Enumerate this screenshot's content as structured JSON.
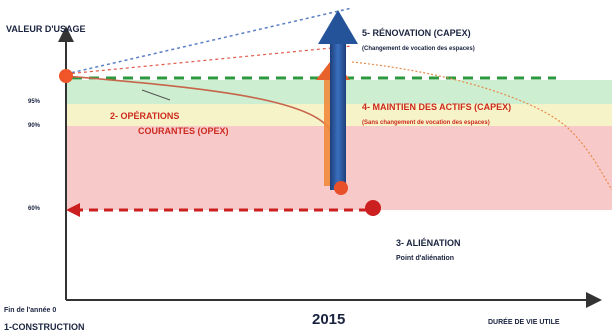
{
  "axes": {
    "y_title": "VALEUR D'USAGE",
    "x_title": "DURÉE DE VIE UTILE",
    "x_origin_label": "Fin de l'année 0",
    "year_label": "2015",
    "level_labels": [
      "95%",
      "90%",
      "60%"
    ]
  },
  "stages": {
    "construction": "1-CONSTRUCTION",
    "operations_line1": "2- OPÉRATIONS",
    "operations_line2": "COURANTES (OPEX)",
    "alienation_title": "3- ALIÉNATION",
    "alienation_sub": "Point d'aliénation",
    "maintien_title": "4- MAINTIEN DES ACTIFS (CAPEX)",
    "maintien_sub": "(Sans changement de vocation des espaces)",
    "renovation_title": "5- RÉNOVATION (CAPEX)",
    "renovation_sub": "(Changement de vocation des espaces)"
  },
  "colors": {
    "band_green": "#cdeed0",
    "band_yellow": "#f7f3c8",
    "band_red": "#f8c9c9",
    "green_line": "#2b9a3e",
    "red_line": "#cc1f1f",
    "blue_arrow": "#24539a",
    "orange_dot": "#f0552a",
    "text_dark": "#1a2340",
    "text_red": "#cc2a1e"
  }
}
